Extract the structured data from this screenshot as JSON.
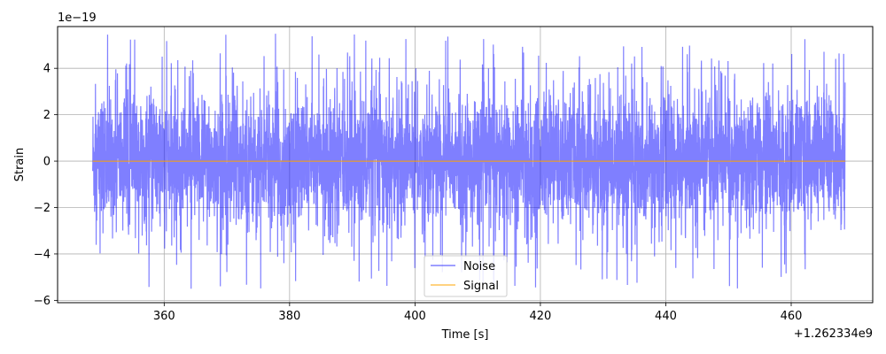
{
  "chart_data": {
    "type": "line",
    "xlabel": "Time [s]",
    "ylabel": "Strain",
    "x_offset_label": "+1.262334e9",
    "y_scale_label": "1e−19",
    "xlim": [
      343,
      473
    ],
    "ylim": [
      -6.1,
      5.8
    ],
    "x_ticks": [
      360,
      380,
      400,
      420,
      440,
      460
    ],
    "x_tick_labels": [
      "360",
      "380",
      "400",
      "420",
      "440",
      "460"
    ],
    "y_ticks": [
      -6,
      -4,
      -2,
      0,
      2,
      4
    ],
    "y_tick_labels": [
      "−6",
      "−4",
      "−2",
      "0",
      "2",
      "4"
    ],
    "grid": true,
    "legend_position": "bottom-center",
    "series": [
      {
        "name": "Noise",
        "color": "#0000ff",
        "alpha": 0.5,
        "x_start": 348.6,
        "x_end": 468.6,
        "typical_range": [
          -2.5,
          2.5
        ],
        "peak_max": 5.5,
        "peak_min": -5.5
      },
      {
        "name": "Signal",
        "color": "#ffa500",
        "x_start": 348.6,
        "x_end": 468.6,
        "value": 0.0
      }
    ]
  }
}
